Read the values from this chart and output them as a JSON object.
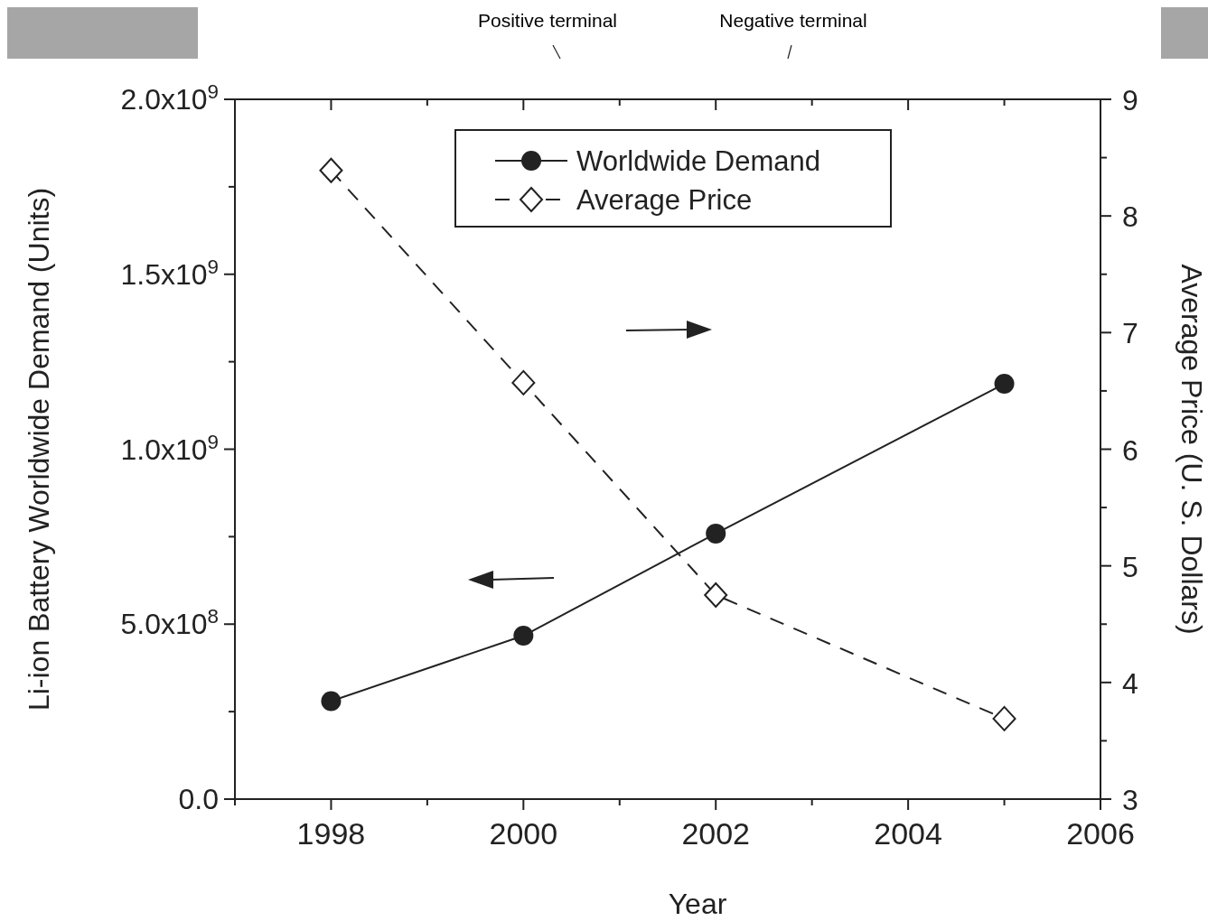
{
  "chart_data": {
    "type": "line",
    "xlabel": "Year",
    "ylabel": "Li-ion Battery Worldwide Demand (Units)",
    "y2label": "Average Price (U. S. Dollars)",
    "x": [
      1998,
      2000,
      2002,
      2005
    ],
    "series": [
      {
        "name": "Worldwide Demand",
        "color": "#222222",
        "values": [
          280000000,
          467000000,
          759000000,
          1187000000
        ],
        "marker": "circle",
        "line_style": "solid"
      },
      {
        "name": "Average Price",
        "color": "#222222",
        "values": [
          8.39,
          6.57,
          4.75,
          3.69
        ],
        "axis": "y2",
        "marker": "diamond",
        "line_style": "dashed"
      }
    ],
    "xlim": [
      1997,
      2006
    ],
    "xticks": [
      {
        "value": 1997,
        "label": null
      },
      1998,
      {
        "value": 1999,
        "label": null
      },
      2000,
      {
        "value": 2001,
        "label": null
      },
      2002,
      {
        "value": 2003,
        "label": null
      },
      2004,
      {
        "value": 2005,
        "label": null
      },
      2006
    ],
    "ylim": [
      0,
      2000000000
    ],
    "yticks": [
      {
        "value": 0,
        "label": "0.0"
      },
      {
        "value": 250000000,
        "label": null
      },
      {
        "value": 500000000,
        "label": "5.0x10$^{8}$"
      },
      {
        "value": 750000000,
        "label": null
      },
      {
        "value": 1000000000,
        "label": "1.0x10$^{9}$"
      },
      {
        "value": 1250000000,
        "label": null
      },
      {
        "value": 1500000000,
        "label": "1.5x10$^{9}$"
      },
      {
        "value": 1750000000,
        "label": null
      },
      {
        "value": 2000000000,
        "label": "2.0x10$^{9}$"
      }
    ],
    "y2lim": [
      3,
      9
    ],
    "y2ticks": [
      3,
      {
        "value": 3.5,
        "label": null
      },
      4,
      {
        "value": 4.5,
        "label": null
      },
      5,
      {
        "value": 5.5,
        "label": null
      },
      6,
      {
        "value": 6.5,
        "label": null
      },
      7,
      {
        "value": 7.5,
        "label": null
      },
      8,
      {
        "value": 8.5,
        "label": null
      },
      9
    ],
    "legend": "top",
    "grid": false,
    "annotations": [
      "Positive terminal",
      "Negative terminal"
    ]
  }
}
